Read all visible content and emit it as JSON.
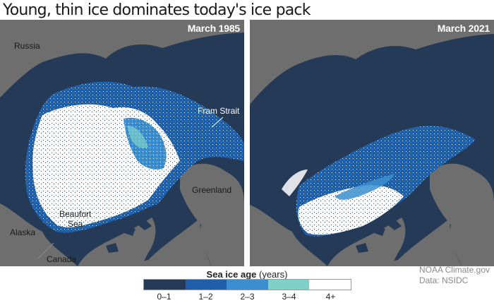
{
  "title": "Young, thin ice dominates today's ice pack",
  "panels": [
    {
      "date": "March 1985",
      "labels": {
        "russia": "Russia",
        "fram_strait": "Fram Strait",
        "greenland": "Greenland",
        "beaufort_sea_line1": "Beaufort",
        "beaufort_sea_line2": "Sea",
        "alaska": "Alaska",
        "canada": "Canada"
      }
    },
    {
      "date": "March 2021"
    }
  ],
  "legend": {
    "title": "Sea ice age",
    "unit": "(years)",
    "categories": [
      {
        "label": "0–1",
        "color": "#243a57"
      },
      {
        "label": "1–2",
        "color": "#1f5ea8"
      },
      {
        "label": "2–3",
        "color": "#3b8fd1"
      },
      {
        "label": "3–4",
        "color": "#7fd0c8"
      },
      {
        "label": "4+",
        "color": "#ffffff"
      }
    ]
  },
  "credit": {
    "line1": "NOAA Climate.gov",
    "line2": "Data: NSIDC"
  }
}
